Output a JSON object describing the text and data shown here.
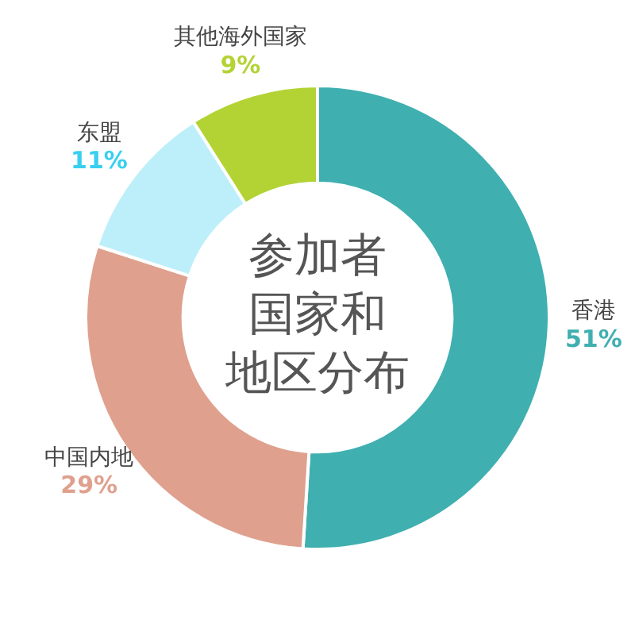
{
  "chart_data": {
    "type": "donut",
    "title": "参加者国家和地区分布",
    "categories": [
      "香港",
      "中国内地",
      "东盟",
      "其他海外国家"
    ],
    "values": [
      51,
      29,
      11,
      9
    ],
    "colors": [
      "#40afb0",
      "#dfa08e",
      "#bdeffa",
      "#b3d335"
    ],
    "value_labels": [
      "51%",
      "29%",
      "11%",
      "9%"
    ]
  }
}
